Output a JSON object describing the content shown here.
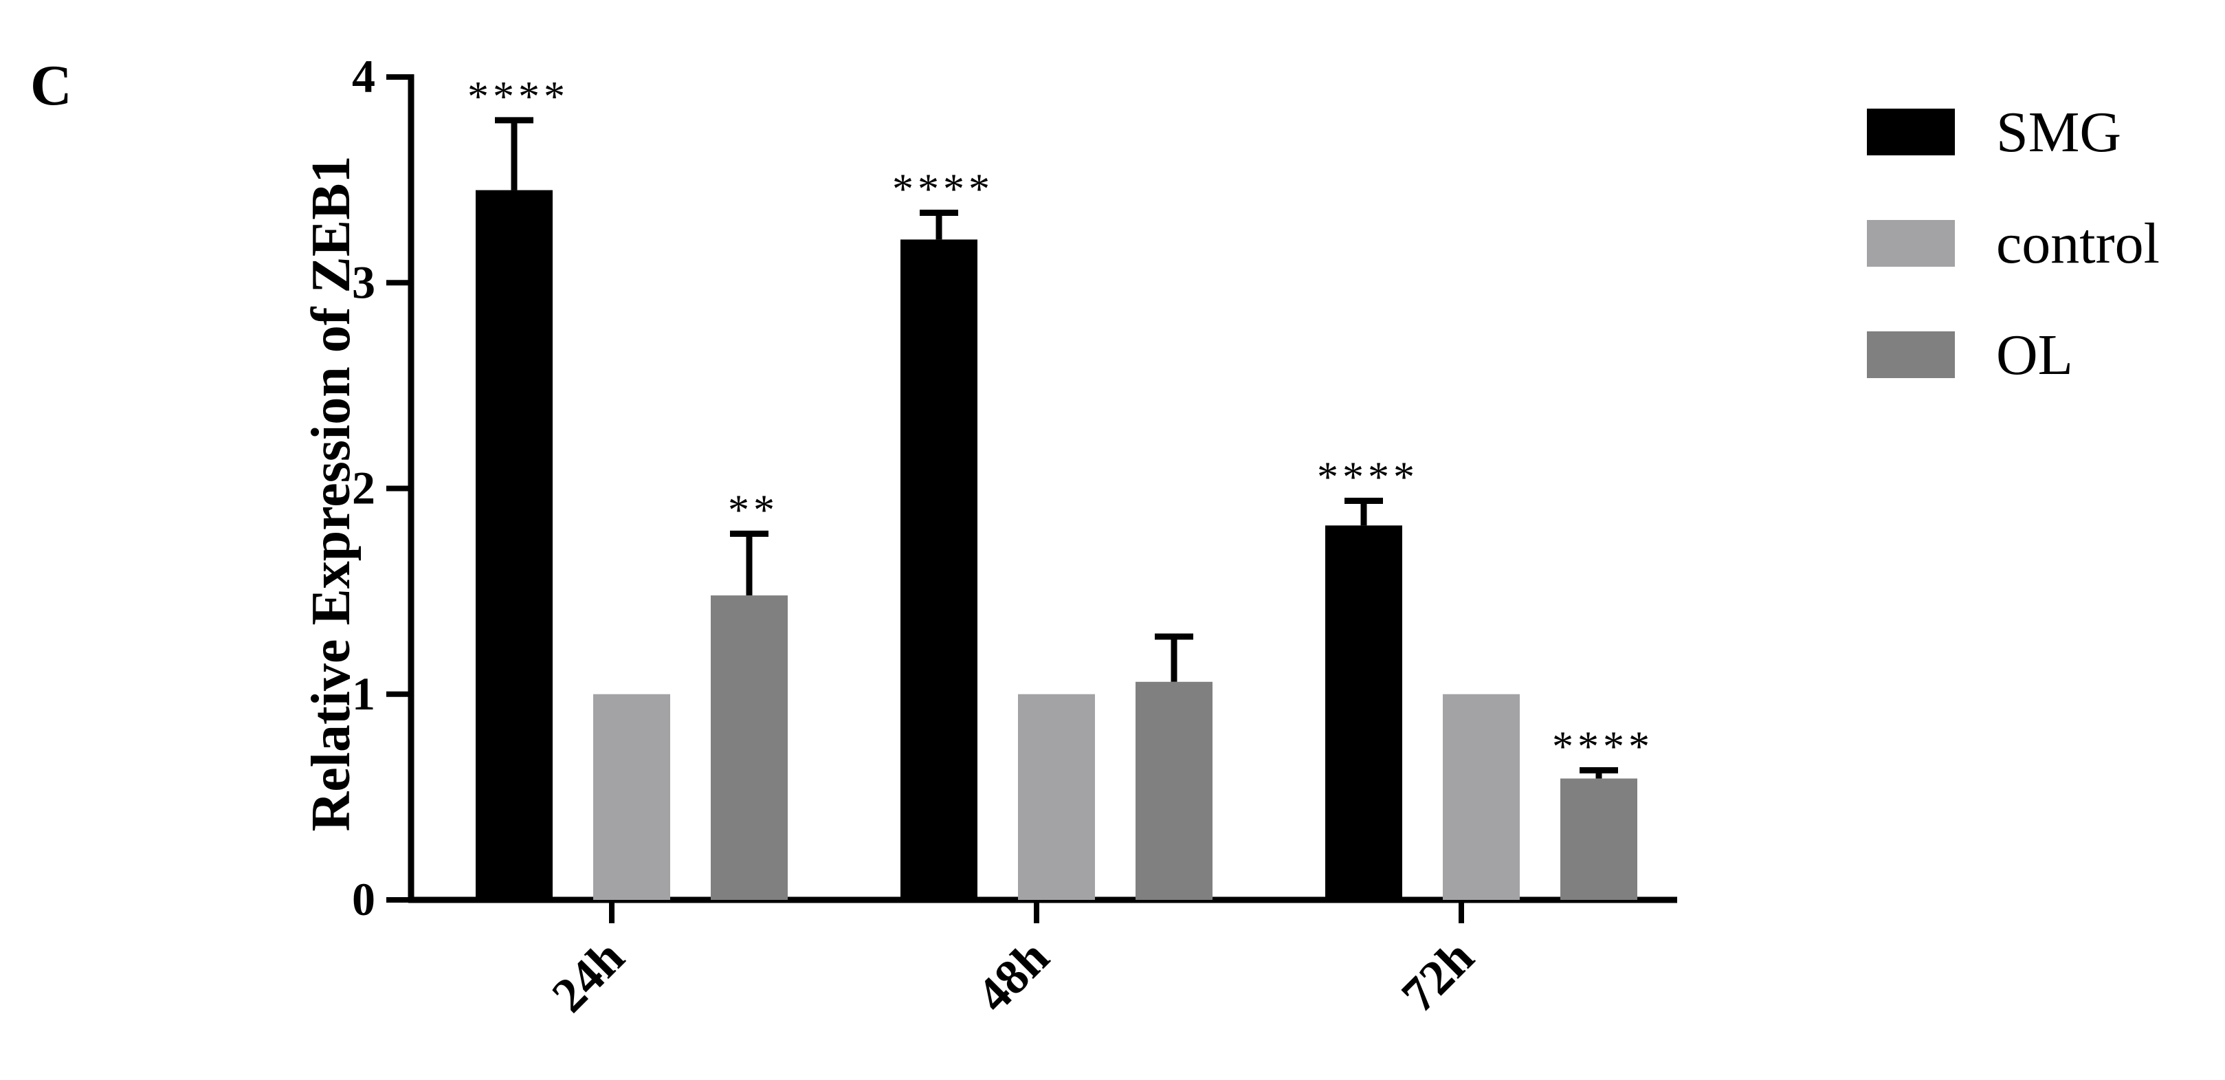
{
  "panel_label": "C",
  "chart_data": {
    "type": "bar",
    "title": "",
    "xlabel": "",
    "ylabel": "Relative Expression of ZEB1",
    "ylim": [
      0,
      4
    ],
    "yticks": [
      0,
      1,
      2,
      3,
      4
    ],
    "categories": [
      "24h",
      "48h",
      "72h"
    ],
    "series": [
      {
        "name": "SMG",
        "color": "#000000",
        "values": [
          3.45,
          3.21,
          1.82
        ],
        "errors": [
          0.34,
          0.13,
          0.12
        ],
        "significance": [
          "****",
          "****",
          "****"
        ]
      },
      {
        "name": "control",
        "color": "#a3a3a6",
        "values": [
          1.0,
          1.0,
          1.0
        ],
        "errors": [
          0,
          0,
          0
        ],
        "significance": [
          "",
          "",
          ""
        ]
      },
      {
        "name": "OL",
        "color": "#808080",
        "values": [
          1.48,
          1.06,
          0.59
        ],
        "errors": [
          0.3,
          0.22,
          0.04
        ],
        "significance": [
          "**",
          "",
          "****"
        ]
      }
    ],
    "legend_position": "top-right",
    "grid": false
  }
}
